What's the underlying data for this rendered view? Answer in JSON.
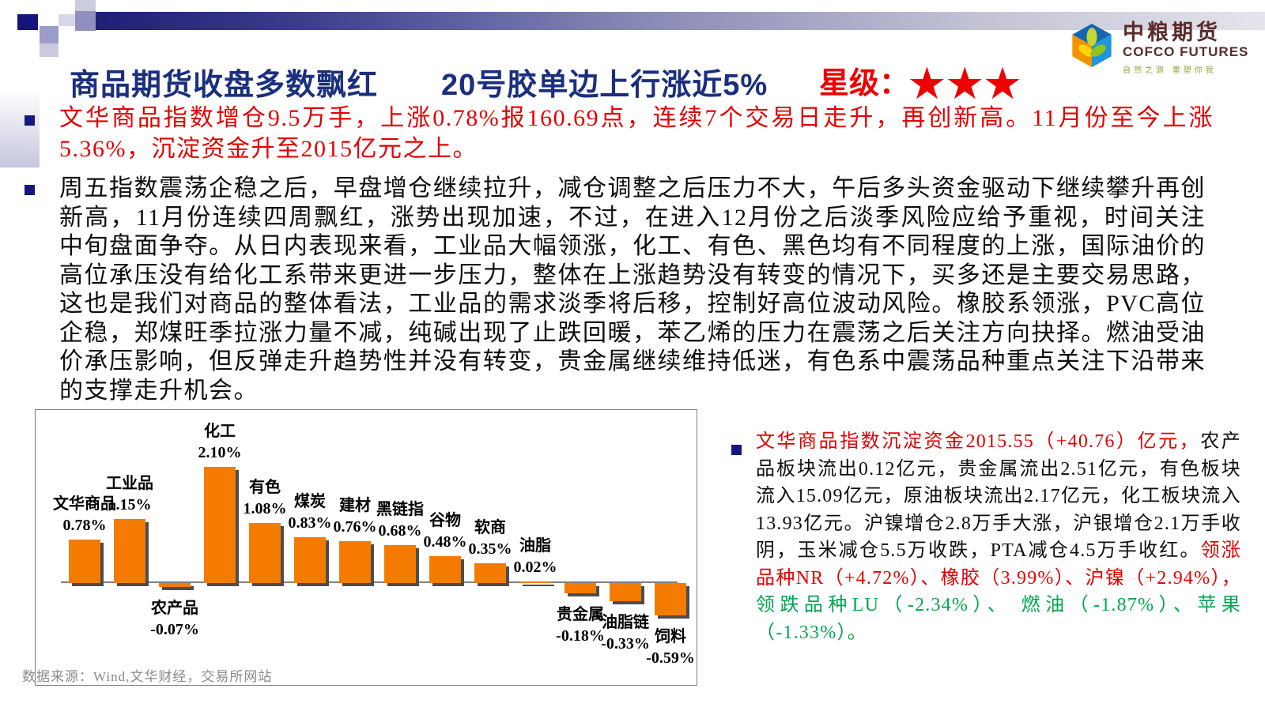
{
  "header": {
    "title_part1": "商品期货收盘多数飘红",
    "title_part2": "20号胶单边上行涨近5%",
    "rating_label": "星级：",
    "rating_stars": "★★★"
  },
  "logo": {
    "name_cn": "中粮期货",
    "name_en": "COFCO FUTURES",
    "tagline": "自然之源 重塑你我"
  },
  "bullets": {
    "bullet1": "文华商品指数增仓9.5万手，上涨0.78%报160.69点，连续7个交易日走升，再创新高。11月份至今上涨5.36%，沉淀资金升至2015亿元之上。",
    "bullet2": "周五指数震荡企稳之后，早盘增仓继续拉升，减仓调整之后压力不大，午后多头资金驱动下继续攀升再创新高，11月份连续四周飘红，涨势出现加速，不过，在进入12月份之后淡季风险应给予重视，时间关注中旬盘面争夺。从日内表现来看，工业品大幅领涨，化工、有色、黑色均有不同程度的上涨，国际油价的高位承压没有给化工系带来更进一步压力，整体在上涨趋势没有转变的情况下，买多还是主要交易思路，这也是我们对商品的整体看法，工业品的需求淡季将后移，控制好高位波动风险。橡胶系领涨，PVC高位企稳，郑煤旺季拉涨力量不减，纯碱出现了止跌回暖，苯乙烯的压力在震荡之后关注方向抉择。燃油受油价承压影响，但反弹走升趋势性并没有转变，贵金属继续维持低迷，有色系中震荡品种重点关注下沿带来的支撑走升机会。"
  },
  "right_panel": {
    "segments": [
      {
        "text": "文华商品指数沉淀资金2015.55（+40.76）亿元，",
        "color": "#e30000"
      },
      {
        "text": "农产品板块流出0.12亿元，贵金属流出2.51亿元，有色板块流入15.09亿元，原油板块流出2.17亿元，化工板块流入13.93亿元。沪镍增仓2.8万手大涨，沪银增仓2.1万手收阴，玉米减仓5.5万收跌，PTA减仓4.5万手收红。",
        "color": "#0d0d0d"
      },
      {
        "text": "领涨品种NR（+4.72%）、橡胶（3.99%）、沪镍（+2.94%），",
        "color": "#e30000"
      },
      {
        "text": "领跌品种LU（-2.34%）、 燃油（-1.87%）、苹果（-1.33%）。",
        "color": "#00a651"
      }
    ]
  },
  "chart_data": {
    "type": "bar",
    "title": "",
    "xlabel": "",
    "ylabel": "",
    "unit": "%",
    "categories": [
      "文华商品",
      "工业品",
      "农产品",
      "化工",
      "有色",
      "煤炭",
      "建材",
      "黑链指",
      "谷物",
      "软商",
      "油脂",
      "贵金属",
      "油脂链",
      "饲料"
    ],
    "values": [
      0.78,
      1.15,
      -0.07,
      2.1,
      1.08,
      0.83,
      0.76,
      0.68,
      0.48,
      0.35,
      0.02,
      -0.18,
      -0.33,
      -0.59
    ],
    "labels": [
      "0.78%",
      "1.15%",
      "-0.07%",
      "2.10%",
      "1.08%",
      "0.83%",
      "0.76%",
      "0.68%",
      "0.48%",
      "0.35%",
      "0.02%",
      "-0.18%",
      "-0.33%",
      "-0.59%"
    ],
    "ylim": [
      -0.8,
      2.4
    ],
    "grid": false,
    "legend": false,
    "bar_color": "#f57b00",
    "shadow_color": "#4d4d4d"
  },
  "footer": {
    "source": "数据来源：Wind,文华财经，交易所网站"
  },
  "colors": {
    "title_navy": "#1b2f7e",
    "accent_red": "#e30000",
    "accent_green": "#00a651",
    "bar_orange": "#f57b00",
    "bullet_navy": "#16167e",
    "footer_gray": "#8a8a8a"
  }
}
